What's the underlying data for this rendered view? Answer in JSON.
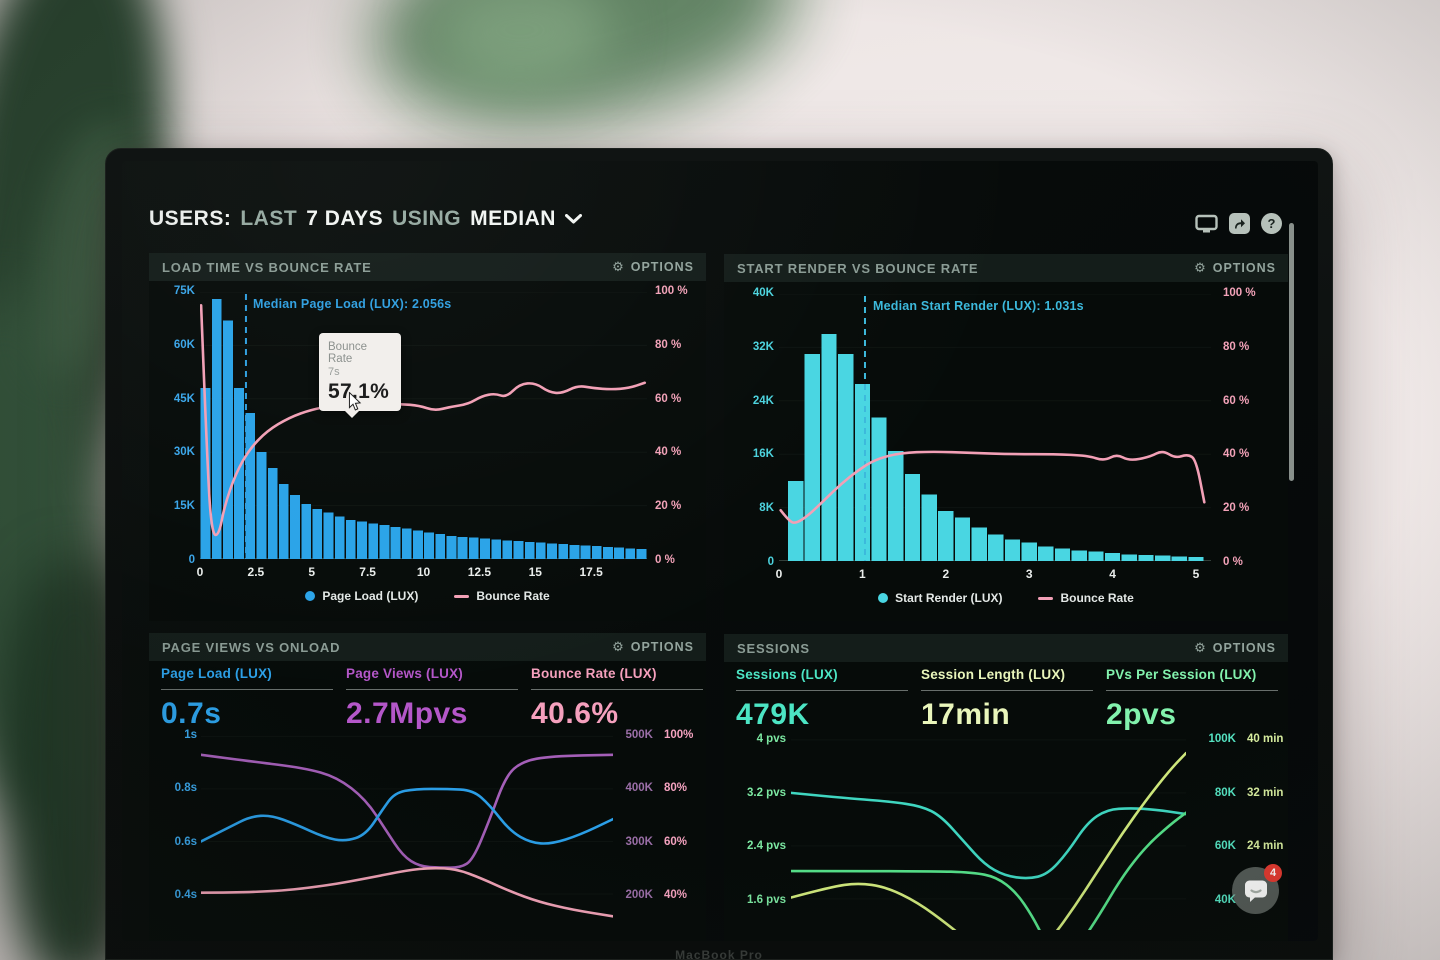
{
  "header": {
    "title_users": "USERS:",
    "title_last": "LAST",
    "title_days": "7 DAYS",
    "title_using": "USING",
    "title_median": "MEDIAN"
  },
  "ui": {
    "options_label": "OPTIONS",
    "help_glyph": "?",
    "gear_glyph": "⚙"
  },
  "laptop": {
    "brand": "MacBook Pro"
  },
  "chat": {
    "badge": "4"
  },
  "colors": {
    "blue": "#2ba2e8",
    "cyan": "#49d6e2",
    "pink": "#f2a0b6",
    "purple": "#ae56c5",
    "teal": "#4fe2c3",
    "green": "#7eeca6",
    "lime": "#dcee9d"
  },
  "chart_data": [
    {
      "id": "load-time-vs-bounce-rate",
      "type": "bar+line",
      "title": "LOAD TIME VS BOUNCE RATE",
      "legend": [
        "Page Load (LUX)",
        "Bounce Rate"
      ],
      "x_range": [
        0,
        20
      ],
      "x_ticks": [
        {
          "v": 0,
          "label": "0"
        },
        {
          "v": 2.5,
          "label": "2.5"
        },
        {
          "v": 5,
          "label": "5"
        },
        {
          "v": 7.5,
          "label": "7.5"
        },
        {
          "v": 10,
          "label": "10"
        },
        {
          "v": 12.5,
          "label": "12.5"
        },
        {
          "v": 15,
          "label": "15"
        },
        {
          "v": 17.5,
          "label": "17.5"
        }
      ],
      "left_ticks": [
        "75K",
        "60K",
        "45K",
        "30K",
        "15K",
        "0"
      ],
      "left_axis_max": 75000,
      "left_color": "#3aa6ea",
      "right_ticks": [
        "100 %",
        "80 %",
        "60 %",
        "40 %",
        "20 %",
        "0 %"
      ],
      "right_color": "#f2a2b8",
      "bars": {
        "name": "Page Load (LUX)",
        "color": "#2aa3e8",
        "start": 0,
        "width_units": 0.5,
        "values_k": [
          48,
          73,
          67,
          48,
          41,
          30,
          25.5,
          21,
          18,
          15.5,
          14,
          13,
          12,
          11,
          10.5,
          10,
          9.5,
          9,
          8.5,
          8,
          7.5,
          7,
          6.5,
          6.2,
          6,
          5.8,
          5.5,
          5.2,
          5,
          4.8,
          4.6,
          4.4,
          4.2,
          4,
          3.8,
          3.6,
          3.4,
          3.2,
          3,
          2.8
        ]
      },
      "line": {
        "name": "Bounce Rate",
        "color": "#f2a0b6",
        "points_pct": [
          [
            0.05,
            95
          ],
          [
            0.35,
            30
          ],
          [
            0.55,
            9
          ],
          [
            0.85,
            9
          ],
          [
            1.1,
            20
          ],
          [
            1.6,
            32
          ],
          [
            2.2,
            41
          ],
          [
            3,
            48
          ],
          [
            4,
            53
          ],
          [
            5,
            56
          ],
          [
            6,
            57.5
          ],
          [
            7,
            58
          ],
          [
            8,
            58
          ],
          [
            9,
            58
          ],
          [
            9.8,
            57.5
          ],
          [
            10.5,
            55.5
          ],
          [
            11.2,
            57
          ],
          [
            12,
            58
          ],
          [
            12.6,
            61
          ],
          [
            13.2,
            62
          ],
          [
            13.7,
            60.5
          ],
          [
            14.3,
            65.5
          ],
          [
            15,
            66
          ],
          [
            15.6,
            62.5
          ],
          [
            16.2,
            62
          ],
          [
            16.9,
            65
          ],
          [
            17.6,
            64
          ],
          [
            18.4,
            63.5
          ],
          [
            19.2,
            64
          ],
          [
            19.9,
            66
          ]
        ]
      },
      "median": {
        "x": 2.056,
        "label": "Median Page Load (LUX): 2.056s",
        "color": "#2f9fe0"
      },
      "tooltip": {
        "title": "Bounce Rate",
        "x_value": "7s",
        "value": "57.1%"
      }
    },
    {
      "id": "start-render-vs-bounce-rate",
      "type": "bar+line",
      "title": "START RENDER VS BOUNCE RATE",
      "legend": [
        "Start Render (LUX)",
        "Bounce Rate"
      ],
      "x_range": [
        0,
        5.18
      ],
      "x_ticks": [
        {
          "v": 0,
          "label": "0"
        },
        {
          "v": 1,
          "label": "1"
        },
        {
          "v": 2,
          "label": "2"
        },
        {
          "v": 3,
          "label": "3"
        },
        {
          "v": 4,
          "label": "4"
        },
        {
          "v": 5,
          "label": "5"
        }
      ],
      "left_ticks": [
        "40K",
        "32K",
        "24K",
        "16K",
        "8K",
        "0"
      ],
      "left_axis_max": 40000,
      "left_color": "#4cd3de",
      "right_ticks": [
        "100 %",
        "80 %",
        "60 %",
        "40 %",
        "20 %",
        "0 %"
      ],
      "right_color": "#f2a2b8",
      "bars": {
        "name": "Start Render (LUX)",
        "color": "#49d6e2",
        "start": 0.1,
        "width_units": 0.2,
        "values_k": [
          12,
          31,
          34,
          31,
          26.5,
          21.5,
          16.5,
          13,
          10,
          7.5,
          6.5,
          5,
          4,
          3.2,
          2.8,
          2.2,
          1.9,
          1.6,
          1.4,
          1.2,
          1.0,
          0.9,
          0.8,
          0.7,
          0.6
        ]
      },
      "line": {
        "name": "Bounce Rate",
        "color": "#f2a0b6",
        "points_pct": [
          [
            0.02,
            19
          ],
          [
            0.12,
            15
          ],
          [
            0.2,
            14
          ],
          [
            0.35,
            17
          ],
          [
            0.55,
            23
          ],
          [
            0.75,
            29
          ],
          [
            0.95,
            34
          ],
          [
            1.15,
            38
          ],
          [
            1.45,
            40.5
          ],
          [
            1.85,
            41
          ],
          [
            2.3,
            40.5
          ],
          [
            2.8,
            40
          ],
          [
            3.3,
            40
          ],
          [
            3.7,
            39.5
          ],
          [
            3.9,
            37.5
          ],
          [
            4.05,
            40
          ],
          [
            4.2,
            37.5
          ],
          [
            4.45,
            39
          ],
          [
            4.6,
            41.5
          ],
          [
            4.75,
            38.5
          ],
          [
            4.9,
            40
          ],
          [
            5.0,
            38
          ],
          [
            5.1,
            22
          ]
        ]
      },
      "median": {
        "x": 1.031,
        "label": "Median Start Render (LUX): 1.031s",
        "color": "#3cb9dc"
      }
    },
    {
      "id": "page-views-vs-onload",
      "type": "line",
      "title": "PAGE VIEWS VS ONLOAD",
      "metrics": [
        {
          "label": "Page Load (LUX)",
          "value": "0.7s",
          "color": "#2da2ea"
        },
        {
          "label": "Page Views (LUX)",
          "value": "2.7Mpvs",
          "color": "#b457c9"
        },
        {
          "label": "Bounce Rate (LUX)",
          "value": "40.6%",
          "color": "#f5a0bd"
        }
      ],
      "left_ticks": [
        {
          "v": 1,
          "label": "1s"
        },
        {
          "v": 0.8,
          "label": "0.8s"
        },
        {
          "v": 0.6,
          "label": "0.6s"
        },
        {
          "v": 0.4,
          "label": "0.4s"
        }
      ],
      "left_color": "#3aa6ea",
      "right_ticks": [
        {
          "col1": "500K",
          "col2": "100%"
        },
        {
          "col1": "400K",
          "col2": "80%"
        },
        {
          "col1": "300K",
          "col2": "60%"
        },
        {
          "col1": "200K",
          "col2": "40%"
        }
      ],
      "right_col1_color": "#9b6fa8",
      "right_col2_color": "#f5a3c0",
      "series": [
        {
          "name": "Page Views (LUX)",
          "color": "#a45fb8",
          "points": [
            [
              0,
              0.93
            ],
            [
              0.12,
              0.905
            ],
            [
              0.25,
              0.88
            ],
            [
              0.33,
              0.845
            ],
            [
              0.4,
              0.76
            ],
            [
              0.45,
              0.64
            ],
            [
              0.49,
              0.545
            ],
            [
              0.53,
              0.505
            ],
            [
              0.58,
              0.5
            ],
            [
              0.63,
              0.5
            ],
            [
              0.66,
              0.53
            ],
            [
              0.7,
              0.68
            ],
            [
              0.74,
              0.85
            ],
            [
              0.78,
              0.905
            ],
            [
              0.85,
              0.925
            ],
            [
              1,
              0.93
            ]
          ]
        },
        {
          "name": "Page Load (LUX)",
          "color": "#2b9fe8",
          "points": [
            [
              0,
              0.6
            ],
            [
              0.07,
              0.655
            ],
            [
              0.12,
              0.695
            ],
            [
              0.17,
              0.7
            ],
            [
              0.23,
              0.665
            ],
            [
              0.3,
              0.615
            ],
            [
              0.35,
              0.6
            ],
            [
              0.4,
              0.625
            ],
            [
              0.44,
              0.72
            ],
            [
              0.47,
              0.785
            ],
            [
              0.52,
              0.8
            ],
            [
              0.6,
              0.8
            ],
            [
              0.66,
              0.795
            ],
            [
              0.7,
              0.74
            ],
            [
              0.75,
              0.64
            ],
            [
              0.8,
              0.595
            ],
            [
              0.85,
              0.59
            ],
            [
              0.92,
              0.625
            ],
            [
              1,
              0.685
            ]
          ]
        },
        {
          "name": "Bounce Rate (LUX)",
          "color": "#f2a3b8",
          "points": [
            [
              0,
              0.405
            ],
            [
              0.15,
              0.405
            ],
            [
              0.3,
              0.43
            ],
            [
              0.42,
              0.465
            ],
            [
              0.5,
              0.49
            ],
            [
              0.56,
              0.5
            ],
            [
              0.62,
              0.495
            ],
            [
              0.68,
              0.46
            ],
            [
              0.75,
              0.41
            ],
            [
              0.82,
              0.37
            ],
            [
              0.9,
              0.34
            ],
            [
              1,
              0.315
            ]
          ]
        }
      ]
    },
    {
      "id": "sessions",
      "type": "line",
      "title": "SESSIONS",
      "metrics": [
        {
          "label": "Sessions (LUX)",
          "value": "479K",
          "color": "#4ce5c4"
        },
        {
          "label": "Session Length (LUX)",
          "value": "17min",
          "color": "#e9f6bb"
        },
        {
          "label": "PVs Per Session (LUX)",
          "value": "2pvs",
          "color": "#82f2ad"
        }
      ],
      "left_ticks": [
        {
          "v": 4,
          "label": "4 pvs"
        },
        {
          "v": 3.2,
          "label": "3.2 pvs"
        },
        {
          "v": 2.4,
          "label": "2.4 pvs"
        },
        {
          "v": 1.6,
          "label": "1.6 pvs"
        }
      ],
      "left_color": "#7ce8a2",
      "right_ticks": [
        {
          "col1": "100K",
          "col2": "40 min"
        },
        {
          "col1": "80K",
          "col2": "32 min"
        },
        {
          "col1": "60K",
          "col2": "24 min"
        },
        {
          "col1": "40K",
          "col2": ""
        }
      ],
      "right_col1_color": "#55e3c2",
      "right_col2_color": "#d9efa0",
      "series": [
        {
          "name": "Sessions (LUX)",
          "color": "#3fd6c0",
          "points": [
            [
              0,
              3.2
            ],
            [
              0.12,
              3.13
            ],
            [
              0.25,
              3.07
            ],
            [
              0.33,
              3.0
            ],
            [
              0.38,
              2.85
            ],
            [
              0.44,
              2.45
            ],
            [
              0.49,
              2.12
            ],
            [
              0.54,
              1.95
            ],
            [
              0.6,
              1.9
            ],
            [
              0.65,
              1.97
            ],
            [
              0.7,
              2.3
            ],
            [
              0.75,
              2.75
            ],
            [
              0.8,
              2.95
            ],
            [
              0.86,
              2.97
            ],
            [
              0.92,
              2.95
            ],
            [
              1,
              2.88
            ]
          ]
        },
        {
          "name": "PVs Per Session (LUX)",
          "color": "#55e089",
          "points": [
            [
              0,
              2.02
            ],
            [
              0.35,
              2.02
            ],
            [
              0.46,
              2.0
            ],
            [
              0.52,
              1.93
            ],
            [
              0.57,
              1.7
            ],
            [
              0.61,
              1.35
            ],
            [
              0.64,
              1.0
            ],
            [
              0.67,
              0.75
            ],
            [
              0.7,
              0.7
            ],
            [
              0.73,
              0.9
            ],
            [
              0.78,
              1.35
            ],
            [
              0.84,
              1.95
            ],
            [
              0.9,
              2.4
            ],
            [
              0.96,
              2.72
            ],
            [
              1,
              2.9
            ]
          ]
        },
        {
          "name": "Session Length (LUX)",
          "color": "#cfe87c",
          "points": [
            [
              0,
              1.62
            ],
            [
              0.1,
              1.78
            ],
            [
              0.17,
              1.84
            ],
            [
              0.24,
              1.78
            ],
            [
              0.32,
              1.55
            ],
            [
              0.4,
              1.2
            ],
            [
              0.46,
              0.9
            ],
            [
              0.52,
              0.68
            ],
            [
              0.56,
              0.6
            ],
            [
              0.6,
              0.68
            ],
            [
              0.66,
              1.0
            ],
            [
              0.72,
              1.5
            ],
            [
              0.78,
              2.05
            ],
            [
              0.84,
              2.6
            ],
            [
              0.9,
              3.1
            ],
            [
              0.96,
              3.55
            ],
            [
              1,
              3.8
            ]
          ]
        }
      ]
    }
  ]
}
